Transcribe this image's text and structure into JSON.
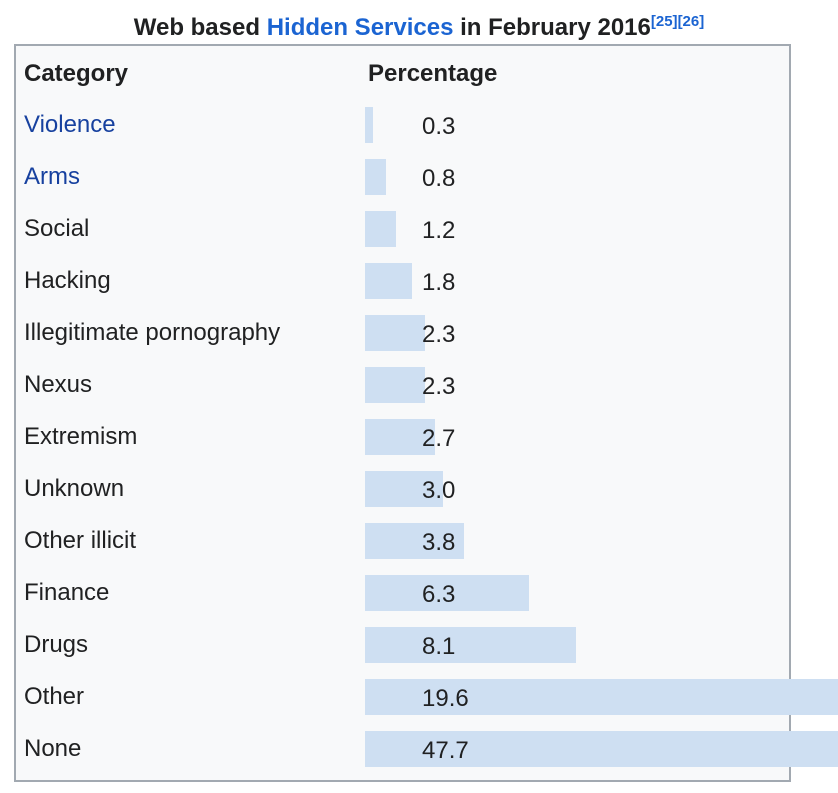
{
  "title": {
    "text_before_link": "Web based ",
    "link_text": "Hidden Services",
    "text_after_link": " in February 2016",
    "references": [
      "[25]",
      "[26]"
    ]
  },
  "table": {
    "header": {
      "category": "Category",
      "percentage": "Percentage"
    },
    "rows": [
      {
        "label": "Violence",
        "value": 0.3,
        "display_value": "0.3",
        "link": true
      },
      {
        "label": "Arms",
        "value": 0.8,
        "display_value": "0.8",
        "link": true
      },
      {
        "label": "Social",
        "value": 1.2,
        "display_value": "1.2",
        "link": false
      },
      {
        "label": "Hacking",
        "value": 1.8,
        "display_value": "1.8",
        "link": false
      },
      {
        "label": "Illegitimate pornography",
        "value": 2.3,
        "display_value": "2.3",
        "link": false
      },
      {
        "label": "Nexus",
        "value": 2.3,
        "display_value": "2.3",
        "link": false
      },
      {
        "label": "Extremism",
        "value": 2.7,
        "display_value": "2.7",
        "link": false
      },
      {
        "label": "Unknown",
        "value": 3.0,
        "display_value": "3.0",
        "link": false
      },
      {
        "label": "Other illicit",
        "value": 3.8,
        "display_value": "3.8",
        "link": false
      },
      {
        "label": "Finance",
        "value": 6.3,
        "display_value": "6.3",
        "link": false
      },
      {
        "label": "Drugs",
        "value": 8.1,
        "display_value": "8.1",
        "link": false
      },
      {
        "label": "Other",
        "value": 19.6,
        "display_value": "19.6",
        "link": false
      },
      {
        "label": "None",
        "value": 47.7,
        "display_value": "47.7",
        "link": false
      }
    ]
  },
  "colors": {
    "bar": "#cedff2",
    "table_background": "#f8f9fa",
    "table_border": "#a2a9b1",
    "text": "#202122",
    "title_link": "#1b64d2",
    "row_link": "#17419f",
    "page_background": "#ffffff"
  },
  "chart_data": {
    "type": "bar",
    "orientation": "horizontal",
    "title": "Web based Hidden Services in February 2016",
    "xlabel": "Percentage",
    "ylabel": "Category",
    "categories": [
      "Violence",
      "Arms",
      "Social",
      "Hacking",
      "Illegitimate pornography",
      "Nexus",
      "Extremism",
      "Unknown",
      "Other illicit",
      "Finance",
      "Drugs",
      "Other",
      "None"
    ],
    "values": [
      0.3,
      0.8,
      1.2,
      1.8,
      2.3,
      2.3,
      2.7,
      3.0,
      3.8,
      6.3,
      8.1,
      19.6,
      47.7
    ],
    "unit": "percent",
    "grid": false,
    "legend": false,
    "notes": "Bars for Other and None overflow the table boundary; values labeled on each bar",
    "references": [
      "[25]",
      "[26]"
    ]
  }
}
